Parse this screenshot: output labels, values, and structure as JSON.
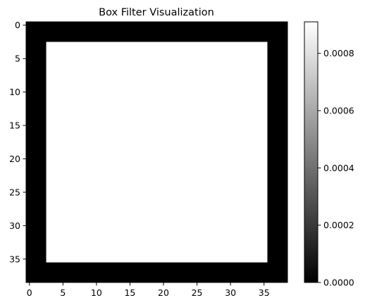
{
  "chart_data": {
    "type": "heatmap",
    "title": "Box Filter Visualization",
    "colormap": "gray",
    "image": {
      "rows": 39,
      "cols": 39,
      "background_value": 0.0,
      "box": {
        "value": 0.00091,
        "row_start": 3,
        "row_end": 35,
        "col_start": 3,
        "col_end": 35
      }
    },
    "xlim": [
      -0.5,
      38.5
    ],
    "ylim": [
      38.5,
      -0.5
    ],
    "x_ticks": [
      0,
      5,
      10,
      15,
      20,
      25,
      30,
      35
    ],
    "y_ticks": [
      0,
      5,
      10,
      15,
      20,
      25,
      30,
      35
    ],
    "x_tick_labels": [
      "0",
      "5",
      "10",
      "15",
      "20",
      "25",
      "30",
      "35"
    ],
    "y_tick_labels": [
      "0",
      "5",
      "10",
      "15",
      "20",
      "25",
      "30",
      "35"
    ],
    "colorbar": {
      "range": [
        0.0,
        0.00091
      ],
      "ticks": [
        0.0,
        0.0002,
        0.0004,
        0.0006,
        0.0008
      ],
      "tick_labels": [
        "0.0000",
        "0.0002",
        "0.0004",
        "0.0006",
        "0.0008"
      ],
      "colors": {
        "low": "#000000",
        "high": "#ffffff"
      }
    },
    "xlabel": "",
    "ylabel": "",
    "grid": false
  }
}
